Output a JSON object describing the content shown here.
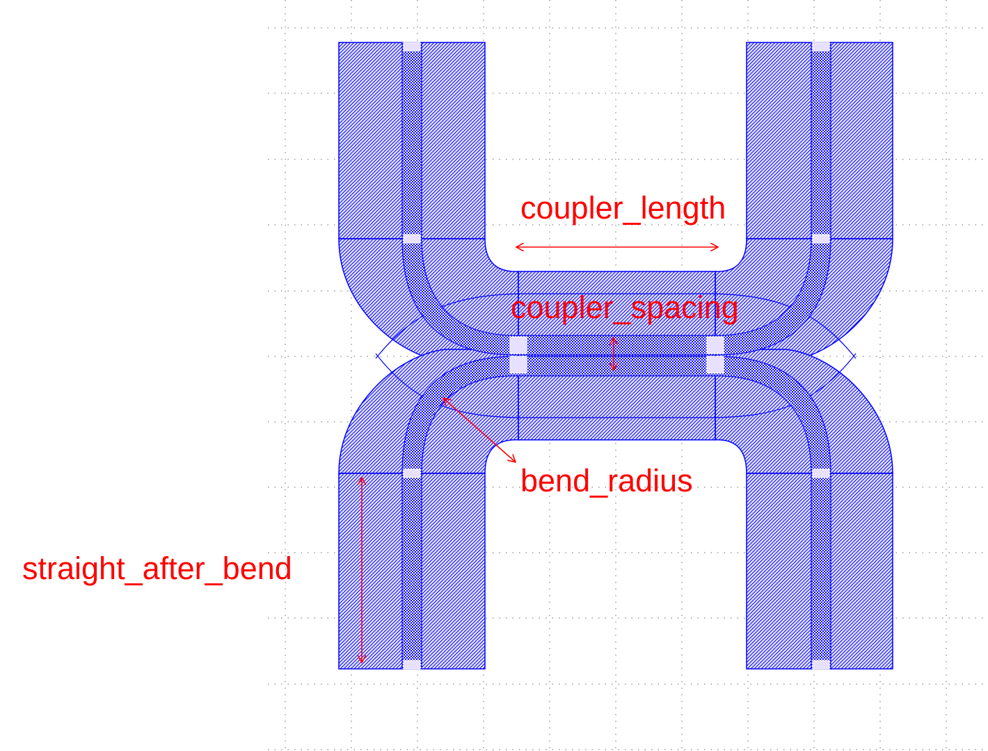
{
  "diagram": {
    "type": "directional-coupler-layout",
    "colors": {
      "grid_dots": "#9a9a9a",
      "shape_fill": "#0000ff",
      "shape_outline": "#0000ff",
      "annotation": "#ff0000"
    },
    "labels": {
      "coupler_length": "coupler_length",
      "coupler_spacing": "coupler_spacing",
      "bend_radius": "bend_radius",
      "straight_after_bend": "straight_after_bend"
    }
  }
}
